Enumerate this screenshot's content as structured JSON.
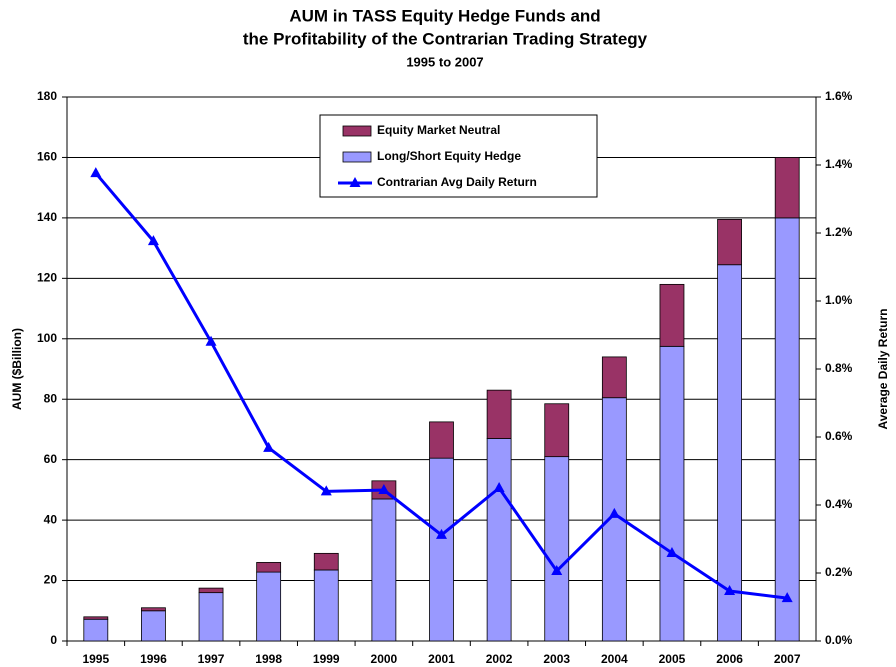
{
  "chart_data": {
    "type": "stacked-bar-line",
    "title": [
      "AUM in TASS Equity Hedge Funds and",
      "the Profitability of the Contrarian Trading Strategy"
    ],
    "subtitle": "1995 to 2007",
    "y_label": "AUM ($Billion)",
    "y2_label": "Average Daily Return",
    "categories": [
      "1995",
      "1996",
      "1997",
      "1998",
      "1999",
      "2000",
      "2001",
      "2002",
      "2003",
      "2004",
      "2005",
      "2006",
      "2007"
    ],
    "series": [
      {
        "name": "Equity Market Neutral",
        "color": "#993366",
        "values": [
          0.8,
          1,
          1.5,
          3.2,
          5.5,
          6,
          12,
          16,
          17.5,
          13.5,
          20.5,
          15,
          20
        ]
      },
      {
        "name": "Long/Short Equity Hedge",
        "color": "#9999ff",
        "values": [
          7.2,
          10,
          16,
          22.8,
          23.5,
          47,
          60.5,
          67,
          61,
          80.5,
          97.5,
          124.5,
          140
        ]
      },
      {
        "name": "Contrarian Avg Daily Return",
        "color": "#0000ff",
        "axis": "y2",
        "values": [
          1.376,
          1.176,
          0.88,
          0.568,
          0.44,
          0.444,
          0.312,
          0.45,
          0.206,
          0.374,
          0.259,
          0.147,
          0.126
        ]
      }
    ],
    "ylim": [
      0,
      180
    ],
    "yticks": [
      0,
      20,
      40,
      60,
      80,
      100,
      120,
      140,
      160,
      180
    ],
    "y2lim": [
      0,
      1.6
    ],
    "y2ticks": [
      {
        "value": 0,
        "label": "0.0%"
      },
      {
        "value": 0.2,
        "label": "0.2%"
      },
      {
        "value": 0.4,
        "label": "0.4%"
      },
      {
        "value": 0.6,
        "label": "0.6%"
      },
      {
        "value": 0.8,
        "label": "0.8%"
      },
      {
        "value": 1.0,
        "label": "1.0%"
      },
      {
        "value": 1.2,
        "label": "1.2%"
      },
      {
        "value": 1.4,
        "label": "1.4%"
      },
      {
        "value": 1.6,
        "label": "1.6%"
      }
    ],
    "grid": true,
    "legend": "top"
  }
}
